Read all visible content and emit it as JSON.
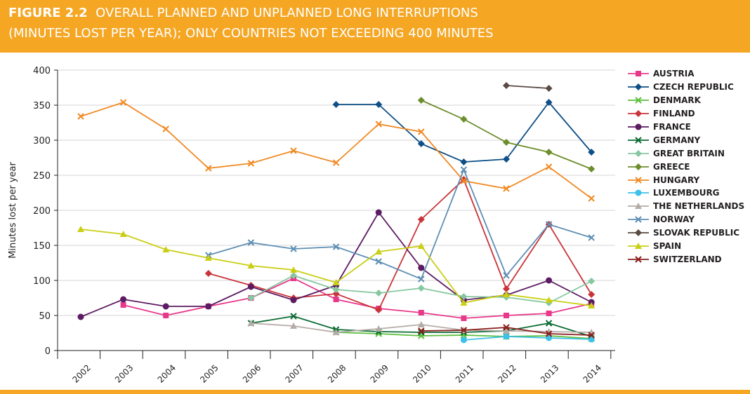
{
  "header": {
    "figure_label": "FIGURE 2.2",
    "title_line1": "OVERALL PLANNED AND UNPLANNED LONG INTERRUPTIONS",
    "title_line2": "(MINUTES LOST PER YEAR); ONLY COUNTRIES NOT EXCEEDING 400 MINUTES",
    "background_color": "#f5a623"
  },
  "chart_data": {
    "type": "line",
    "title": "FIGURE 2.2 OVERALL PLANNED AND UNPLANNED LONG INTERRUPTIONS (MINUTES LOST PER YEAR); ONLY COUNTRIES NOT EXCEEDING 400 MINUTES",
    "xlabel": "",
    "ylabel": "Minutes lost per year",
    "categories": [
      "2002",
      "2003",
      "2004",
      "2005",
      "2006",
      "2007",
      "2008",
      "2009",
      "2010",
      "2011",
      "2012",
      "2013",
      "2014"
    ],
    "ylim": [
      0,
      400
    ],
    "yticks": [
      0,
      50,
      100,
      150,
      200,
      250,
      300,
      350,
      400
    ],
    "grid": true,
    "legend_position": "right",
    "series": [
      {
        "name": "AUSTRIA",
        "color": "#e8388a",
        "marker": "square",
        "values": [
          null,
          65,
          50,
          63,
          75,
          103,
          73,
          60,
          54,
          46,
          50,
          53,
          67
        ]
      },
      {
        "name": "CZECH REPUBLIC",
        "color": "#0d4f87",
        "marker": "diamond",
        "values": [
          null,
          null,
          null,
          null,
          null,
          null,
          351,
          351,
          295,
          269,
          273,
          354,
          283
        ]
      },
      {
        "name": "DENMARK",
        "color": "#5bbf3c",
        "marker": "x",
        "values": [
          null,
          null,
          null,
          null,
          null,
          null,
          26,
          24,
          21,
          22,
          20,
          21,
          17
        ]
      },
      {
        "name": "FINLAND",
        "color": "#c9343a",
        "marker": "diamond",
        "values": [
          null,
          null,
          null,
          110,
          93,
          75,
          81,
          58,
          187,
          244,
          88,
          180,
          80
        ]
      },
      {
        "name": "FRANCE",
        "color": "#5c1b62",
        "marker": "circle",
        "values": [
          48,
          73,
          63,
          63,
          91,
          72,
          93,
          197,
          118,
          72,
          79,
          100,
          69
        ]
      },
      {
        "name": "GERMANY",
        "color": "#0b6a32",
        "marker": "x",
        "values": [
          null,
          null,
          null,
          null,
          39,
          49,
          30,
          27,
          26,
          26,
          28,
          39,
          20
        ]
      },
      {
        "name": "GREAT BRITAIN",
        "color": "#86c8a0",
        "marker": "diamond",
        "values": [
          null,
          null,
          null,
          null,
          75,
          107,
          87,
          82,
          89,
          77,
          76,
          68,
          99
        ]
      },
      {
        "name": "GREECE",
        "color": "#6c8e2b",
        "marker": "diamond",
        "values": [
          null,
          null,
          null,
          null,
          null,
          null,
          null,
          null,
          357,
          330,
          297,
          283,
          259
        ]
      },
      {
        "name": "HUNGARY",
        "color": "#f08a24",
        "marker": "x",
        "values": [
          334,
          354,
          316,
          260,
          267,
          285,
          268,
          323,
          312,
          242,
          231,
          262,
          217
        ]
      },
      {
        "name": "LUXEMBOURG",
        "color": "#3ec1e8",
        "marker": "circle",
        "values": [
          null,
          null,
          null,
          null,
          null,
          null,
          null,
          null,
          null,
          15,
          20,
          18,
          16
        ]
      },
      {
        "name": "THE NETHERLANDS",
        "color": "#b5aca8",
        "marker": "triangle",
        "values": [
          null,
          null,
          null,
          null,
          39,
          35,
          26,
          31,
          37,
          29,
          28,
          27,
          26
        ]
      },
      {
        "name": "NORWAY",
        "color": "#5e8fb4",
        "marker": "x",
        "values": [
          null,
          null,
          null,
          136,
          154,
          145,
          148,
          127,
          102,
          258,
          107,
          180,
          161
        ]
      },
      {
        "name": "SLOVAK REPUBLIC",
        "color": "#5a4a42",
        "marker": "diamond",
        "values": [
          null,
          null,
          null,
          null,
          null,
          null,
          null,
          null,
          null,
          null,
          378,
          374,
          null
        ]
      },
      {
        "name": "SPAIN",
        "color": "#c9cf14",
        "marker": "triangle",
        "values": [
          173,
          166,
          144,
          132,
          121,
          115,
          97,
          141,
          149,
          68,
          80,
          72,
          64
        ]
      },
      {
        "name": "SWITZERLAND",
        "color": "#8b1d1b",
        "marker": "x",
        "values": [
          null,
          null,
          null,
          null,
          null,
          null,
          null,
          null,
          28,
          29,
          33,
          24,
          22
        ]
      }
    ]
  }
}
